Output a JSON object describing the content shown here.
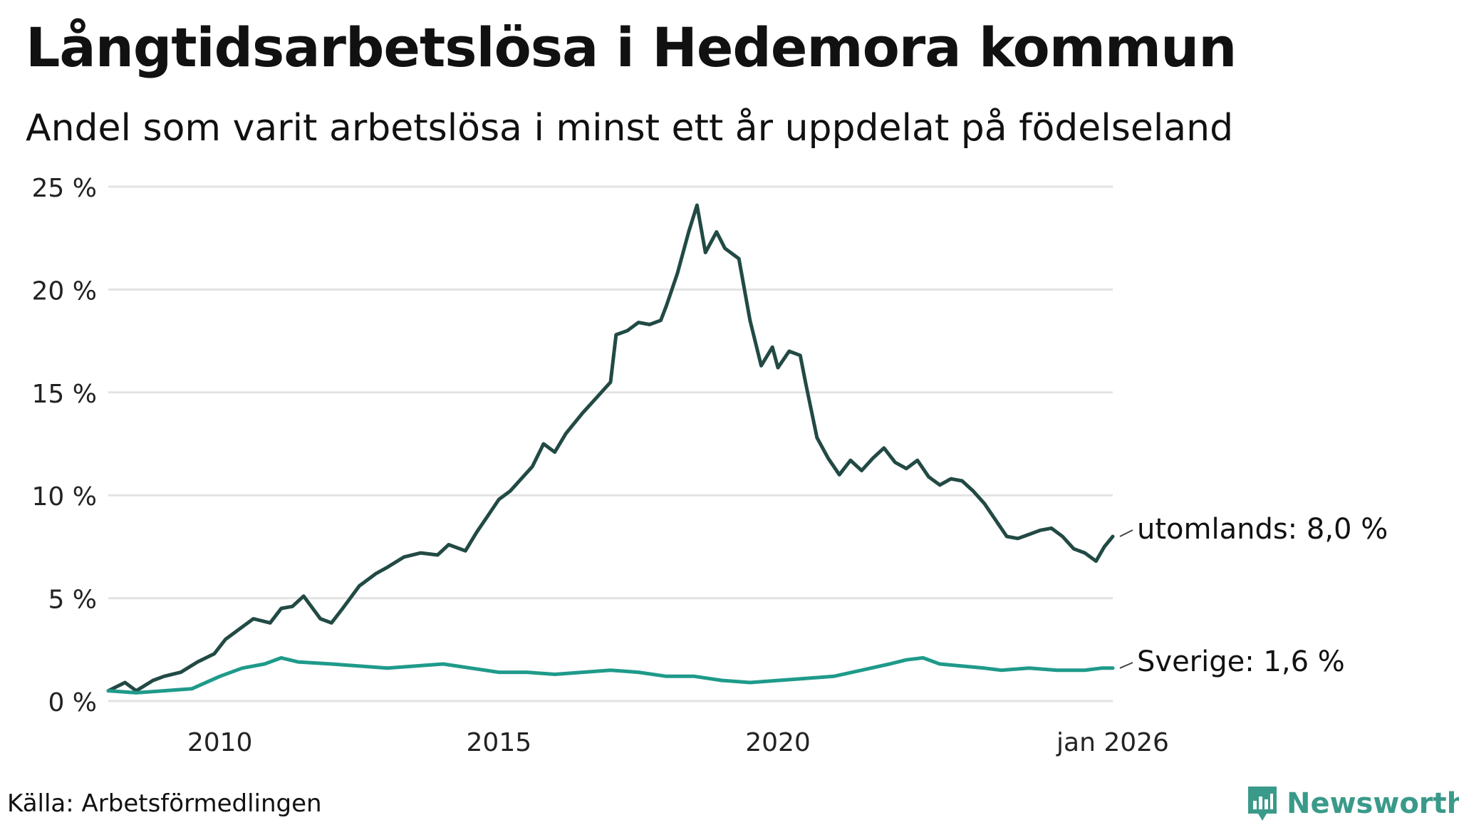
{
  "title": "Långtidsarbetslösa i Hedemora kommun",
  "subtitle": "Andel som varit arbetslösa i minst ett år uppdelat på födelseland",
  "source": "Källa: Arbetsförmedlingen",
  "brand": "Newsworthy",
  "colors": {
    "utomlands": "#224a44",
    "sverige": "#1f9a8a",
    "grid": "#e3e3e3",
    "brand": "#3a9a8a"
  },
  "chart_data": {
    "type": "line",
    "title": "Långtidsarbetslösa i Hedemora kommun",
    "xlabel": "",
    "ylabel": "",
    "xlim": [
      2008.0,
      2026.0
    ],
    "ylim": [
      0,
      25
    ],
    "yticks": [
      0,
      5,
      10,
      15,
      20,
      25
    ],
    "ytick_labels": [
      "0 %",
      "5 %",
      "10 %",
      "15 %",
      "20 %",
      "25 %"
    ],
    "xticks": [
      2010,
      2015,
      2020,
      2026
    ],
    "xtick_labels": [
      "2010",
      "2015",
      "2020",
      "jan 2026"
    ],
    "grid": true,
    "series": [
      {
        "name": "utomlands",
        "end_label": "utomlands: 8,0 %",
        "points": [
          [
            2008.0,
            0.5
          ],
          [
            2008.3,
            0.9
          ],
          [
            2008.5,
            0.5
          ],
          [
            2008.8,
            1.0
          ],
          [
            2009.0,
            1.2
          ],
          [
            2009.3,
            1.4
          ],
          [
            2009.6,
            1.9
          ],
          [
            2009.9,
            2.3
          ],
          [
            2010.1,
            3.0
          ],
          [
            2010.3,
            3.4
          ],
          [
            2010.6,
            4.0
          ],
          [
            2010.9,
            3.8
          ],
          [
            2011.1,
            4.5
          ],
          [
            2011.3,
            4.6
          ],
          [
            2011.5,
            5.1
          ],
          [
            2011.8,
            4.0
          ],
          [
            2012.0,
            3.8
          ],
          [
            2012.2,
            4.5
          ],
          [
            2012.5,
            5.6
          ],
          [
            2012.8,
            6.2
          ],
          [
            2013.0,
            6.5
          ],
          [
            2013.3,
            7.0
          ],
          [
            2013.6,
            7.2
          ],
          [
            2013.9,
            7.1
          ],
          [
            2014.1,
            7.6
          ],
          [
            2014.4,
            7.3
          ],
          [
            2014.6,
            8.2
          ],
          [
            2014.8,
            9.0
          ],
          [
            2015.0,
            9.8
          ],
          [
            2015.2,
            10.2
          ],
          [
            2015.4,
            10.8
          ],
          [
            2015.6,
            11.4
          ],
          [
            2015.8,
            12.5
          ],
          [
            2016.0,
            12.1
          ],
          [
            2016.2,
            13.0
          ],
          [
            2016.5,
            14.0
          ],
          [
            2016.7,
            14.6
          ],
          [
            2016.9,
            15.2
          ],
          [
            2017.0,
            15.5
          ],
          [
            2017.1,
            17.8
          ],
          [
            2017.3,
            18.0
          ],
          [
            2017.5,
            18.4
          ],
          [
            2017.7,
            18.3
          ],
          [
            2017.9,
            18.5
          ],
          [
            2018.0,
            19.2
          ],
          [
            2018.2,
            20.8
          ],
          [
            2018.4,
            22.8
          ],
          [
            2018.55,
            24.1
          ],
          [
            2018.7,
            21.8
          ],
          [
            2018.9,
            22.8
          ],
          [
            2019.05,
            22.0
          ],
          [
            2019.3,
            21.5
          ],
          [
            2019.5,
            18.5
          ],
          [
            2019.7,
            16.3
          ],
          [
            2019.9,
            17.2
          ],
          [
            2020.0,
            16.2
          ],
          [
            2020.2,
            17.0
          ],
          [
            2020.4,
            16.8
          ],
          [
            2020.5,
            15.4
          ],
          [
            2020.7,
            12.8
          ],
          [
            2020.9,
            11.8
          ],
          [
            2021.1,
            11.0
          ],
          [
            2021.3,
            11.7
          ],
          [
            2021.5,
            11.2
          ],
          [
            2021.7,
            11.8
          ],
          [
            2021.9,
            12.3
          ],
          [
            2022.1,
            11.6
          ],
          [
            2022.3,
            11.3
          ],
          [
            2022.5,
            11.7
          ],
          [
            2022.7,
            10.9
          ],
          [
            2022.9,
            10.5
          ],
          [
            2023.1,
            10.8
          ],
          [
            2023.3,
            10.7
          ],
          [
            2023.5,
            10.2
          ],
          [
            2023.7,
            9.6
          ],
          [
            2023.9,
            8.8
          ],
          [
            2024.1,
            8.0
          ],
          [
            2024.3,
            7.9
          ],
          [
            2024.5,
            8.1
          ],
          [
            2024.7,
            8.3
          ],
          [
            2024.9,
            8.4
          ],
          [
            2025.1,
            8.0
          ],
          [
            2025.3,
            7.4
          ],
          [
            2025.5,
            7.2
          ],
          [
            2025.7,
            6.8
          ],
          [
            2025.85,
            7.5
          ],
          [
            2026.0,
            8.0
          ]
        ]
      },
      {
        "name": "Sverige",
        "end_label": "Sverige: 1,6 %",
        "points": [
          [
            2008.0,
            0.5
          ],
          [
            2008.5,
            0.4
          ],
          [
            2009.0,
            0.5
          ],
          [
            2009.5,
            0.6
          ],
          [
            2010.0,
            1.2
          ],
          [
            2010.4,
            1.6
          ],
          [
            2010.8,
            1.8
          ],
          [
            2011.1,
            2.1
          ],
          [
            2011.4,
            1.9
          ],
          [
            2012.0,
            1.8
          ],
          [
            2012.5,
            1.7
          ],
          [
            2013.0,
            1.6
          ],
          [
            2013.5,
            1.7
          ],
          [
            2014.0,
            1.8
          ],
          [
            2014.5,
            1.6
          ],
          [
            2015.0,
            1.4
          ],
          [
            2015.5,
            1.4
          ],
          [
            2016.0,
            1.3
          ],
          [
            2016.5,
            1.4
          ],
          [
            2017.0,
            1.5
          ],
          [
            2017.5,
            1.4
          ],
          [
            2018.0,
            1.2
          ],
          [
            2018.5,
            1.2
          ],
          [
            2019.0,
            1.0
          ],
          [
            2019.5,
            0.9
          ],
          [
            2020.0,
            1.0
          ],
          [
            2020.5,
            1.1
          ],
          [
            2021.0,
            1.2
          ],
          [
            2021.5,
            1.5
          ],
          [
            2022.0,
            1.8
          ],
          [
            2022.3,
            2.0
          ],
          [
            2022.6,
            2.1
          ],
          [
            2022.9,
            1.8
          ],
          [
            2023.3,
            1.7
          ],
          [
            2023.7,
            1.6
          ],
          [
            2024.0,
            1.5
          ],
          [
            2024.5,
            1.6
          ],
          [
            2025.0,
            1.5
          ],
          [
            2025.5,
            1.5
          ],
          [
            2025.8,
            1.6
          ],
          [
            2026.0,
            1.6
          ]
        ]
      }
    ]
  }
}
